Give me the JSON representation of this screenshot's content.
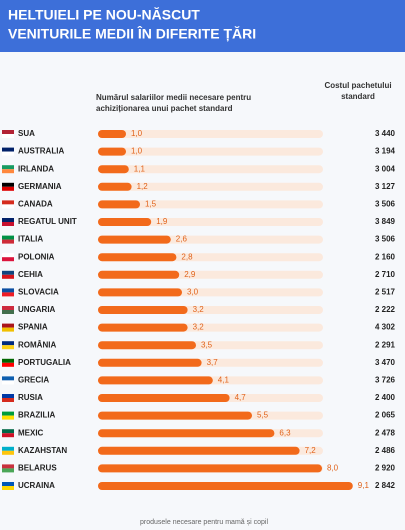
{
  "chart_data": {
    "type": "hbar",
    "title": [
      "HELTUIELI PE NOU-NĂSCUT",
      "VENITURILE MEDII ÎN DIFERITE ȚĂRI"
    ],
    "value_header": "Numărul salariilor medii necesare pentru achiziționarea unui pachet standard",
    "cost_header": "Costul pachetului standard",
    "footer": "produsele necesare pentru mamă și copil",
    "categories": [
      "SUA",
      "AUSTRALIA",
      "IRLANDA",
      "GERMANIA",
      "CANADA",
      "REGATUL UNIT",
      "ITALIA",
      "POLONIA",
      "CEHIA",
      "SLOVACIA",
      "UNGARIA",
      "SPANIA",
      "ROMÂNIA",
      "PORTUGALIA",
      "GRECIA",
      "RUSIA",
      "BRAZILIA",
      "MEXIC",
      "KAZAHSTAN",
      "BELARUS",
      "UCRAINA"
    ],
    "values": [
      1.0,
      1.0,
      1.1,
      1.2,
      1.5,
      1.9,
      2.6,
      2.8,
      2.9,
      3.0,
      3.2,
      3.2,
      3.5,
      3.7,
      4.1,
      4.7,
      5.5,
      6.3,
      7.2,
      8.0,
      9.1
    ],
    "value_labels": [
      "1,0",
      "1,0",
      "1,1",
      "1,2",
      "1,5",
      "1,9",
      "2,6",
      "2,8",
      "2,9",
      "3,0",
      "3,2",
      "3,2",
      "3,5",
      "3,7",
      "4,1",
      "4,7",
      "5,5",
      "6,3",
      "7,2",
      "8,0",
      "9,1"
    ],
    "costs": [
      "3 440",
      "3 194",
      "3 004",
      "3 127",
      "3 506",
      "3 849",
      "3 506",
      "2 160",
      "2 710",
      "2 517",
      "2 222",
      "4 302",
      "2 291",
      "3 470",
      "3 726",
      "2 400",
      "2 065",
      "2 478",
      "2 486",
      "2 920",
      "2 842"
    ],
    "color": "#f26a1b",
    "xlim": [
      0,
      10
    ]
  }
}
